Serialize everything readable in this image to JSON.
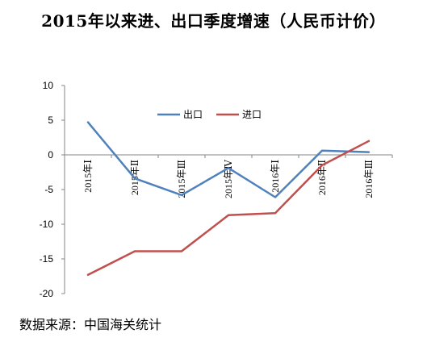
{
  "title": "2015年以来进、出口季度增速（人民币计价）",
  "source": "数据来源：中国海关统计",
  "colors": {
    "export": "#4f81bd",
    "import": "#c0504d",
    "axis": "#868686",
    "background": "#ffffff"
  },
  "chart_data": {
    "type": "line",
    "title": "2015年以来进、出口季度增速（人民币计价）",
    "categories": [
      "2015年Ⅰ",
      "2015年Ⅱ",
      "2015年Ⅲ",
      "2015年Ⅳ",
      "2016年Ⅰ",
      "2016年Ⅱ",
      "2016年Ⅲ"
    ],
    "series": [
      {
        "name": "出口",
        "color": "#4f81bd",
        "values": [
          4.7,
          -3.4,
          -5.8,
          -1.9,
          -6.1,
          0.6,
          0.4
        ]
      },
      {
        "name": "进口",
        "color": "#c0504d",
        "values": [
          -17.3,
          -13.9,
          -13.9,
          -8.7,
          -8.4,
          -1.5,
          2.0
        ]
      }
    ],
    "ylim": [
      -20,
      10
    ],
    "yticks": [
      10,
      5,
      0,
      -5,
      -10,
      -15,
      -20
    ],
    "grid": false,
    "legend": "top",
    "xlabel": "",
    "ylabel": ""
  }
}
